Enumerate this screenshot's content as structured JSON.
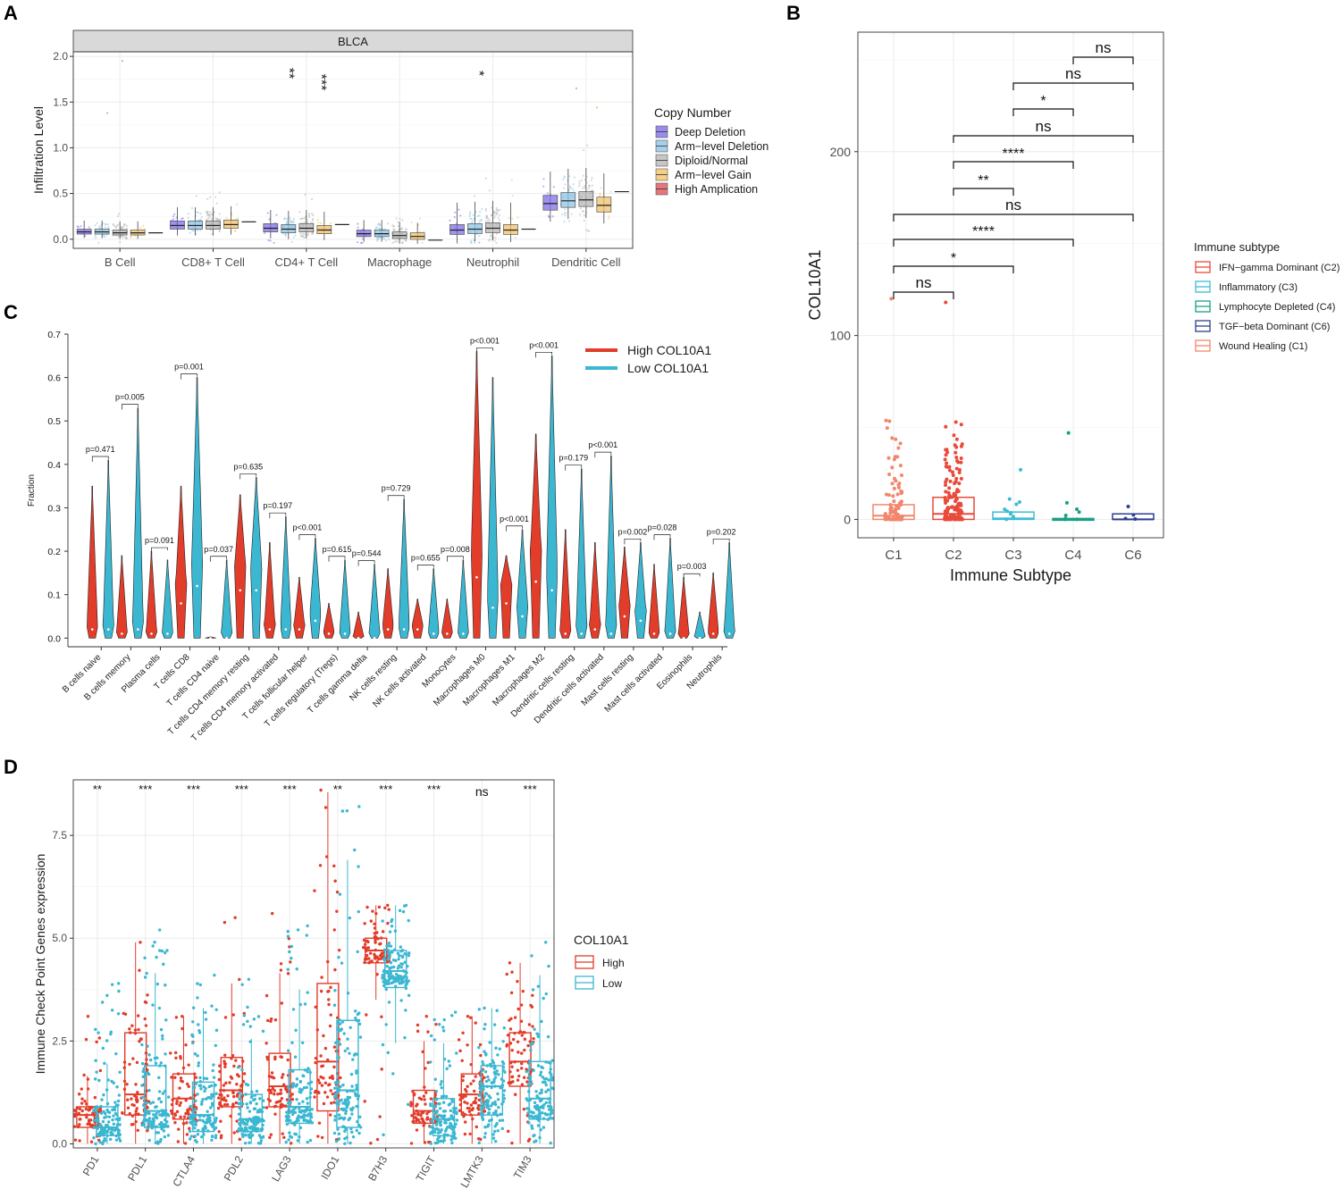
{
  "colors": {
    "deep_deletion": "#7e6fe8",
    "arm_deletion": "#8fc4e6",
    "diploid": "#b8b8b8",
    "arm_gain": "#f2c26a",
    "high_amp": "#e0525e",
    "high": "#e23c2a",
    "low": "#3bb7d1",
    "c1": "#f2866c",
    "c2": "#e94a3a",
    "c3": "#3bbcd2",
    "c4": "#16a085",
    "c6": "#2d3e8e"
  },
  "panels": {
    "A": "A",
    "B": "B",
    "C": "C",
    "D": "D"
  },
  "chart_data": [
    {
      "panel": "A",
      "type": "box",
      "strip_title": "BLCA",
      "ylabel": "Infiltration Level",
      "ylim": [
        -0.1,
        2.05
      ],
      "yticks": [
        "0.0",
        "0.5",
        "1.0",
        "1.5",
        "2.0"
      ],
      "categories": [
        "B Cell",
        "CD8+ T Cell",
        "CD4+ T Cell",
        "Macrophage",
        "Neutrophil",
        "Dendritic Cell"
      ],
      "significance": [
        "",
        "",
        "**",
        "",
        "*",
        ""
      ],
      "significance2": [
        "",
        "",
        "***",
        "",
        "",
        ""
      ],
      "legend_title": "Copy Number",
      "series": [
        {
          "name": "Deep Deletion",
          "medians": [
            0.08,
            0.15,
            0.12,
            0.06,
            0.1,
            0.39
          ]
        },
        {
          "name": "Arm−level Deletion",
          "medians": [
            0.08,
            0.15,
            0.11,
            0.06,
            0.11,
            0.42
          ]
        },
        {
          "name": "Diploid/Normal",
          "medians": [
            0.07,
            0.15,
            0.12,
            0.04,
            0.12,
            0.43
          ]
        },
        {
          "name": "Arm−level Gain",
          "medians": [
            0.07,
            0.16,
            0.1,
            0.03,
            0.1,
            0.37
          ]
        },
        {
          "name": "High Amplication",
          "medians": [
            0.07,
            0.19,
            0.16,
            -0.01,
            0.11,
            0.52
          ]
        }
      ]
    },
    {
      "panel": "B",
      "type": "box",
      "ylabel": "COL10A1",
      "xlabel": "Immune Subtype",
      "ylim": [
        -10,
        265
      ],
      "yticks": [
        "0",
        "100",
        "200"
      ],
      "categories": [
        "C1",
        "C2",
        "C3",
        "C4",
        "C6"
      ],
      "medians": [
        2,
        3,
        0.5,
        0,
        0
      ],
      "q1": [
        0,
        0,
        0,
        0,
        0
      ],
      "q3": [
        8,
        12,
        4,
        0.5,
        3
      ],
      "outlier_max": [
        120,
        118,
        27,
        47,
        7
      ],
      "brackets": [
        {
          "from": "C1",
          "to": "C2",
          "label": "ns"
        },
        {
          "from": "C1",
          "to": "C3",
          "label": "*"
        },
        {
          "from": "C1",
          "to": "C4",
          "label": "****"
        },
        {
          "from": "C1",
          "to": "C6",
          "label": "ns"
        },
        {
          "from": "C2",
          "to": "C3",
          "label": "**"
        },
        {
          "from": "C2",
          "to": "C4",
          "label": "****"
        },
        {
          "from": "C2",
          "to": "C6",
          "label": "ns"
        },
        {
          "from": "C3",
          "to": "C4",
          "label": "*"
        },
        {
          "from": "C3",
          "to": "C6",
          "label": "ns"
        },
        {
          "from": "C4",
          "to": "C6",
          "label": "ns"
        }
      ],
      "legend_title": "Immune subtype",
      "legend": [
        "IFN−gamma Dominant (C2)",
        "Inflammatory (C3)",
        "Lymphocyte Depleted (C4)",
        "TGF−beta Dominant (C6)",
        "Wound Healing (C1)"
      ]
    },
    {
      "panel": "C",
      "type": "violin",
      "ylabel": "Fraction",
      "ylim": [
        -0.02,
        0.7
      ],
      "yticks": [
        "0.0",
        "0.1",
        "0.2",
        "0.3",
        "0.4",
        "0.5",
        "0.6",
        "0.7"
      ],
      "categories": [
        "B cells naive",
        "B cells memory",
        "Plasma cells",
        "T cells CD8",
        "T cells CD4 naive",
        "T cells CD4 memory resting",
        "T cells CD4 memory activated",
        "T cells follicular helper",
        "T cells regulatory (Tregs)",
        "T cells gamma delta",
        "NK cells resting",
        "NK cells activated",
        "Monocytes",
        "Macrophages M0",
        "Macrophages M1",
        "Macrophages M2",
        "Dendritic cells resting",
        "Dendritic cells activated",
        "Mast cells resting",
        "Mast cells activated",
        "Eosinophils",
        "Neutrophils"
      ],
      "pvalues": [
        "p=0.471",
        "p=0.005",
        "p=0.091",
        "p=0.001",
        "p=0.037",
        "p=0.635",
        "p=0.197",
        "p<0.001",
        "p=0.615",
        "p=0.544",
        "p=0.729",
        "p=0.655",
        "p=0.008",
        "p<0.001",
        "p<0.001",
        "p<0.001",
        "p=0.179",
        "p<0.001",
        "p=0.002",
        "p=0.028",
        "p=0.003",
        "p=0.202"
      ],
      "series": [
        {
          "name": "High COL10A1",
          "max": [
            0.35,
            0.19,
            0.2,
            0.35,
            0.003,
            0.33,
            0.22,
            0.14,
            0.08,
            0.06,
            0.16,
            0.09,
            0.09,
            0.66,
            0.19,
            0.47,
            0.25,
            0.22,
            0.21,
            0.17,
            0.14,
            0.15
          ],
          "median": [
            0.02,
            0.01,
            0.01,
            0.08,
            0.0,
            0.11,
            0.02,
            0.02,
            0.01,
            0.0,
            0.02,
            0.02,
            0.01,
            0.14,
            0.08,
            0.13,
            0.01,
            0.02,
            0.05,
            0.01,
            0.0,
            0.01
          ]
        },
        {
          "name": "Low COL10A1",
          "max": [
            0.41,
            0.53,
            0.18,
            0.6,
            0.18,
            0.37,
            0.28,
            0.23,
            0.18,
            0.17,
            0.32,
            0.16,
            0.18,
            0.6,
            0.25,
            0.65,
            0.39,
            0.42,
            0.22,
            0.23,
            0.06,
            0.22
          ],
          "median": [
            0.02,
            0.02,
            0.01,
            0.12,
            0.0,
            0.11,
            0.02,
            0.04,
            0.01,
            0.0,
            0.02,
            0.01,
            0.01,
            0.07,
            0.05,
            0.11,
            0.01,
            0.01,
            0.04,
            0.01,
            0.0,
            0.01
          ]
        }
      ]
    },
    {
      "panel": "D",
      "type": "box",
      "ylabel": "Immune Check Point Genes expression",
      "ylim": [
        -0.1,
        8.85
      ],
      "yticks": [
        "0.0",
        "2.5",
        "5.0",
        "7.5"
      ],
      "categories": [
        "PD1",
        "PDL1",
        "CTLA4",
        "PDL2",
        "LAG3",
        "IDO1",
        "B7H3",
        "TIGIT",
        "LMTK3",
        "TIM3"
      ],
      "significance": [
        "**",
        "***",
        "***",
        "***",
        "***",
        "**",
        "***",
        "***",
        "ns",
        "***"
      ],
      "legend_title": "COL10A1",
      "series": [
        {
          "name": "High",
          "q1": [
            0.4,
            0.7,
            0.6,
            0.9,
            0.9,
            0.8,
            4.4,
            0.5,
            0.7,
            1.4
          ],
          "median": [
            0.7,
            1.2,
            1.1,
            1.3,
            1.4,
            2.0,
            4.7,
            0.8,
            1.2,
            2.0
          ],
          "q3": [
            0.9,
            2.7,
            1.7,
            2.1,
            2.2,
            3.9,
            5.0,
            1.3,
            1.7,
            2.7
          ],
          "max": [
            3.1,
            4.9,
            3.1,
            5.5,
            5.6,
            8.6,
            5.8,
            3.1,
            3.1,
            4.4
          ]
        },
        {
          "name": "Low",
          "q1": [
            0.2,
            0.4,
            0.3,
            0.3,
            0.5,
            0.4,
            3.8,
            0.2,
            0.7,
            0.6
          ],
          "median": [
            0.4,
            0.8,
            0.7,
            0.6,
            0.9,
            1.3,
            4.2,
            0.6,
            1.4,
            1.1
          ],
          "q3": [
            0.9,
            1.9,
            1.5,
            1.2,
            1.8,
            3.0,
            4.7,
            1.1,
            1.9,
            2.0
          ],
          "max": [
            3.9,
            5.2,
            4.1,
            4.0,
            5.3,
            8.2,
            5.8,
            3.2,
            3.3,
            4.9
          ]
        }
      ]
    }
  ]
}
